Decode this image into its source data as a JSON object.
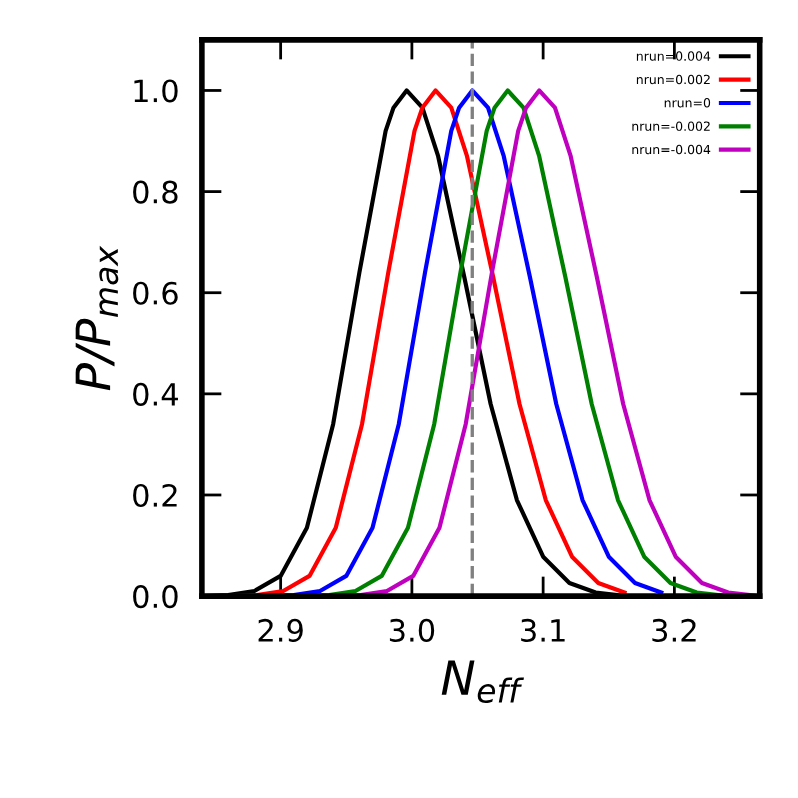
{
  "chart_data": {
    "type": "line",
    "xlabel": "N$_{eff}$",
    "ylabel": "P/P$_{max}$",
    "xlim": [
      2.84,
      3.265
    ],
    "ylim": [
      0,
      1.1
    ],
    "xticks": [
      2.9,
      {
        "value": 3.0,
        "label": "3.0"
      },
      3.1,
      3.2
    ],
    "yticks": [
      {
        "value": 0,
        "label": "0.0"
      },
      0.2,
      0.4,
      0.6,
      0.8,
      {
        "value": 1,
        "label": "1.0"
      }
    ],
    "grid": false,
    "legend": "top right",
    "marker": "none",
    "line_style": "solid",
    "ref_lines": [
      {
        "axis": "x",
        "value": 3.046,
        "color": "#808080",
        "line_style": "dashed"
      }
    ],
    "series": [
      {
        "name": "nrun=0.004",
        "color": "#000000",
        "x": [
          2.84,
          2.86,
          2.88,
          2.9,
          2.92,
          2.94,
          2.96,
          2.98,
          2.986,
          2.996,
          3.008,
          3.02,
          3.04,
          3.06,
          3.08,
          3.1,
          3.12,
          3.14,
          3.16
        ],
        "values": [
          0,
          0.002,
          0.01,
          0.04,
          0.135,
          0.34,
          0.64,
          0.92,
          0.966,
          1.0,
          0.966,
          0.87,
          0.63,
          0.38,
          0.19,
          0.078,
          0.026,
          0.007,
          0.001
        ]
      },
      {
        "name": "nrun=0.002",
        "color": "#ff0000",
        "x": [
          2.862,
          2.882,
          2.902,
          2.922,
          2.942,
          2.962,
          2.982,
          3.002,
          3.008,
          3.018,
          3.03,
          3.042,
          3.062,
          3.082,
          3.102,
          3.122,
          3.142,
          3.162
        ],
        "values": [
          0,
          0.002,
          0.01,
          0.04,
          0.135,
          0.34,
          0.64,
          0.92,
          0.966,
          1.0,
          0.966,
          0.87,
          0.63,
          0.38,
          0.19,
          0.078,
          0.026,
          0.007
        ]
      },
      {
        "name": "nrun=0",
        "color": "#0000ff",
        "x": [
          2.89,
          2.91,
          2.93,
          2.95,
          2.97,
          2.99,
          3.01,
          3.03,
          3.036,
          3.046,
          3.058,
          3.07,
          3.09,
          3.11,
          3.13,
          3.15,
          3.17,
          3.19
        ],
        "values": [
          0,
          0.002,
          0.01,
          0.04,
          0.135,
          0.34,
          0.64,
          0.92,
          0.966,
          1.0,
          0.966,
          0.87,
          0.63,
          0.38,
          0.19,
          0.078,
          0.026,
          0.007
        ]
      },
      {
        "name": "nrun=-0.002",
        "color": "#008000",
        "x": [
          2.917,
          2.937,
          2.957,
          2.977,
          2.997,
          3.017,
          3.037,
          3.057,
          3.063,
          3.073,
          3.085,
          3.097,
          3.117,
          3.137,
          3.157,
          3.177,
          3.197,
          3.217,
          3.237
        ],
        "values": [
          0,
          0.002,
          0.01,
          0.04,
          0.135,
          0.34,
          0.64,
          0.92,
          0.966,
          1.0,
          0.966,
          0.87,
          0.63,
          0.38,
          0.19,
          0.078,
          0.026,
          0.007,
          0.001
        ]
      },
      {
        "name": "nrun=-0.004",
        "color": "#bf00bf",
        "x": [
          2.941,
          2.961,
          2.981,
          3.001,
          3.021,
          3.041,
          3.061,
          3.081,
          3.087,
          3.097,
          3.109,
          3.121,
          3.141,
          3.161,
          3.181,
          3.201,
          3.221,
          3.241,
          3.261
        ],
        "values": [
          0,
          0.002,
          0.01,
          0.04,
          0.135,
          0.34,
          0.64,
          0.92,
          0.966,
          1.0,
          0.966,
          0.87,
          0.63,
          0.38,
          0.19,
          0.078,
          0.026,
          0.007,
          0.001
        ]
      }
    ]
  }
}
